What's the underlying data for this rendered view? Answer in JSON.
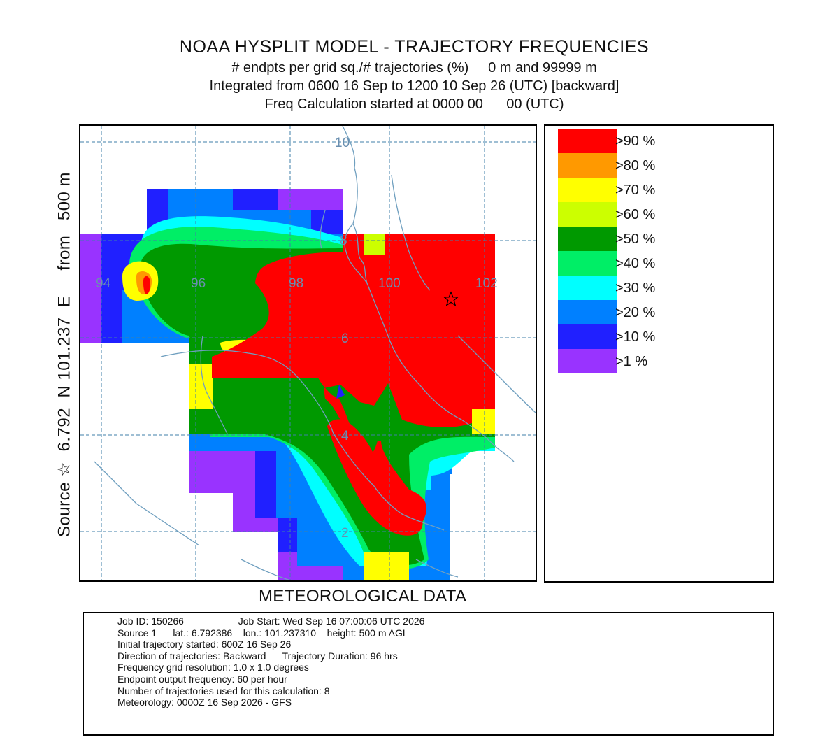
{
  "title": {
    "main": "NOAA HYSPLIT MODEL - TRAJECTORY FREQUENCIES",
    "line1": "# endpts per grid sq./# trajectories (%)     0 m and 99999 m",
    "line2": "Integrated from 0600 16 Sep to 1200 10 Sep 26 (UTC) [backward]",
    "line3": "Freq Calculation started at 0000 00      00 (UTC)"
  },
  "side_label": "Source ☆  6.792  N 101.237  E     from   500 m",
  "map": {
    "longitude_labels": [
      "94",
      "96",
      "98",
      "100",
      "102"
    ],
    "latitude_labels": [
      "10",
      "8",
      "6",
      "4",
      "2"
    ],
    "source": {
      "lat": 6.792386,
      "lon": 101.23731,
      "marker": "star-icon"
    },
    "grid_resolution_deg": 1.0,
    "colors": {
      "coast": "#6f9fbf",
      "grid": "#3f7fa8",
      "label": "#6a8fb0"
    }
  },
  "legend": [
    {
      "label": ">90 %",
      "color": "#ff0000"
    },
    {
      "label": ">80 %",
      "color": "#ff9900"
    },
    {
      "label": ">70 %",
      "color": "#ffff00"
    },
    {
      "label": ">60 %",
      "color": "#ccff00"
    },
    {
      "label": ">50 %",
      "color": "#009900"
    },
    {
      "label": ">40 %",
      "color": "#00ee66"
    },
    {
      "label": ">30 %",
      "color": "#00ffff"
    },
    {
      "label": ">20 %",
      "color": "#0080ff"
    },
    {
      "label": ">10 %",
      "color": "#2020ff"
    },
    {
      "label": ">1 %",
      "color": "#9933ff"
    }
  ],
  "met_label": "METEOROLOGICAL DATA",
  "info": [
    "Job ID: 150266                    Job Start: Wed Sep 16 07:00:06 UTC 2026",
    "Source 1      lat.: 6.792386    lon.: 101.237310    height: 500 m AGL",
    "Initial trajectory started: 600Z 16 Sep 26",
    "Direction of trajectories: Backward      Trajectory Duration: 96 hrs",
    "Frequency grid resolution: 1.0 x 1.0 degrees",
    "Endpoint output frequency: 60 per hour",
    "Number of trajectories used for this calculation: 8",
    "Meteorology: 0000Z 16 Sep 2026 - GFS"
  ]
}
